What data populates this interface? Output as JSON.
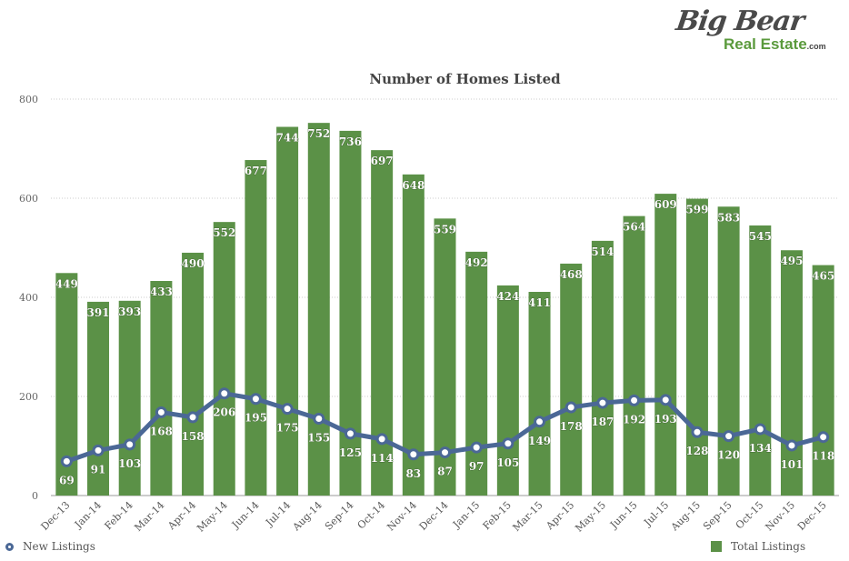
{
  "logo": {
    "big": "Big Bear",
    "sub": "Real Estate",
    "com": ".com"
  },
  "legend": {
    "line": "New Listings",
    "bar": "Total Listings"
  },
  "colors": {
    "bar": "#5b9147",
    "line": "#4b6896",
    "grid": "#cccccc",
    "text": "#555555"
  },
  "chart_data": {
    "type": "bar",
    "title": "Number of Homes Listed",
    "ylim": [
      0,
      800
    ],
    "yticks": [
      0,
      200,
      400,
      600,
      800
    ],
    "grid": true,
    "legend_position": "bottom",
    "categories": [
      "Dec-13",
      "Jan-14",
      "Feb-14",
      "Mar-14",
      "Apr-14",
      "May-14",
      "Jun-14",
      "Jul-14",
      "Aug-14",
      "Sep-14",
      "Oct-14",
      "Nov-14",
      "Dec-14",
      "Jan-15",
      "Feb-15",
      "Mar-15",
      "Apr-15",
      "May-15",
      "Jun-15",
      "Jul-15",
      "Aug-15",
      "Sep-15",
      "Oct-15",
      "Nov-15",
      "Dec-15"
    ],
    "series": [
      {
        "name": "Total Listings",
        "type": "bar",
        "values": [
          449,
          391,
          393,
          433,
          490,
          552,
          677,
          744,
          752,
          736,
          697,
          648,
          559,
          492,
          424,
          411,
          468,
          514,
          564,
          609,
          599,
          583,
          545,
          495,
          465
        ]
      },
      {
        "name": "New Listings",
        "type": "line",
        "values": [
          69,
          91,
          103,
          168,
          158,
          206,
          195,
          175,
          155,
          125,
          114,
          83,
          87,
          97,
          105,
          149,
          178,
          187,
          192,
          193,
          128,
          120,
          134,
          101,
          118
        ]
      }
    ]
  }
}
